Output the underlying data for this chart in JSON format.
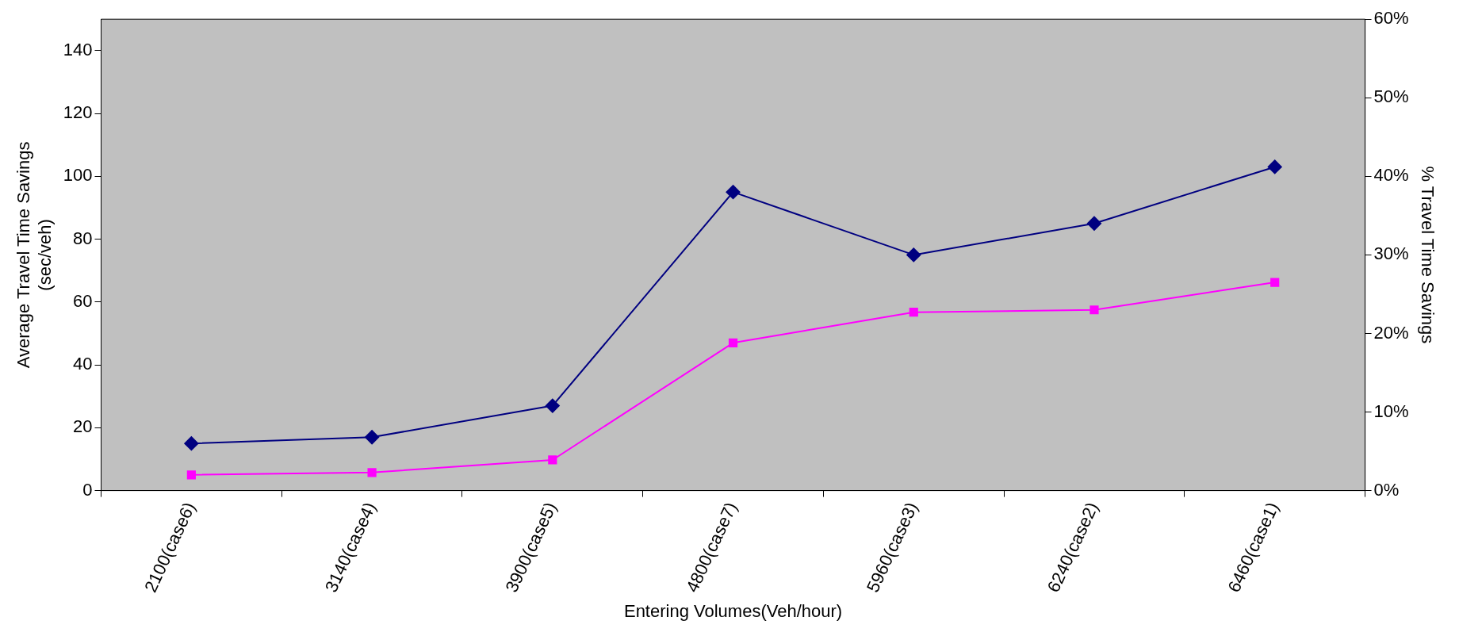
{
  "chart_data": {
    "type": "line",
    "xlabel": "Entering Volumes(Veh/hour)",
    "ylabel": "Average Travel Time Savings\n(sec/veh)",
    "y2label": "% Travel Time Savings",
    "categories": [
      "2100(case6)",
      "3140(case4)",
      "3900(case5)",
      "4800(case7)",
      "5960(case3)",
      "6240(case2)",
      "6460(case1)"
    ],
    "series": [
      {
        "color": "#000080",
        "marker": "diamond",
        "values": [
          15,
          17,
          27,
          95,
          75,
          85,
          103
        ]
      },
      {
        "color": "#ff00ff",
        "marker": "square",
        "axis": "y2",
        "values": [
          2.0,
          2.3,
          3.9,
          18.8,
          22.7,
          23.0,
          26.5
        ]
      }
    ],
    "ylim": [
      0,
      150
    ],
    "yticks": [
      0,
      20,
      40,
      60,
      80,
      100,
      120,
      140
    ],
    "y2lim": [
      0,
      60
    ],
    "y2ticks": [
      {
        "value": 0,
        "label": "0%"
      },
      {
        "value": 10,
        "label": "10%"
      },
      {
        "value": 20,
        "label": "20%"
      },
      {
        "value": 30,
        "label": "30%"
      },
      {
        "value": 40,
        "label": "40%"
      },
      {
        "value": 50,
        "label": "50%"
      },
      {
        "value": 60,
        "label": "60%"
      }
    ],
    "grid": false,
    "legend": false
  }
}
